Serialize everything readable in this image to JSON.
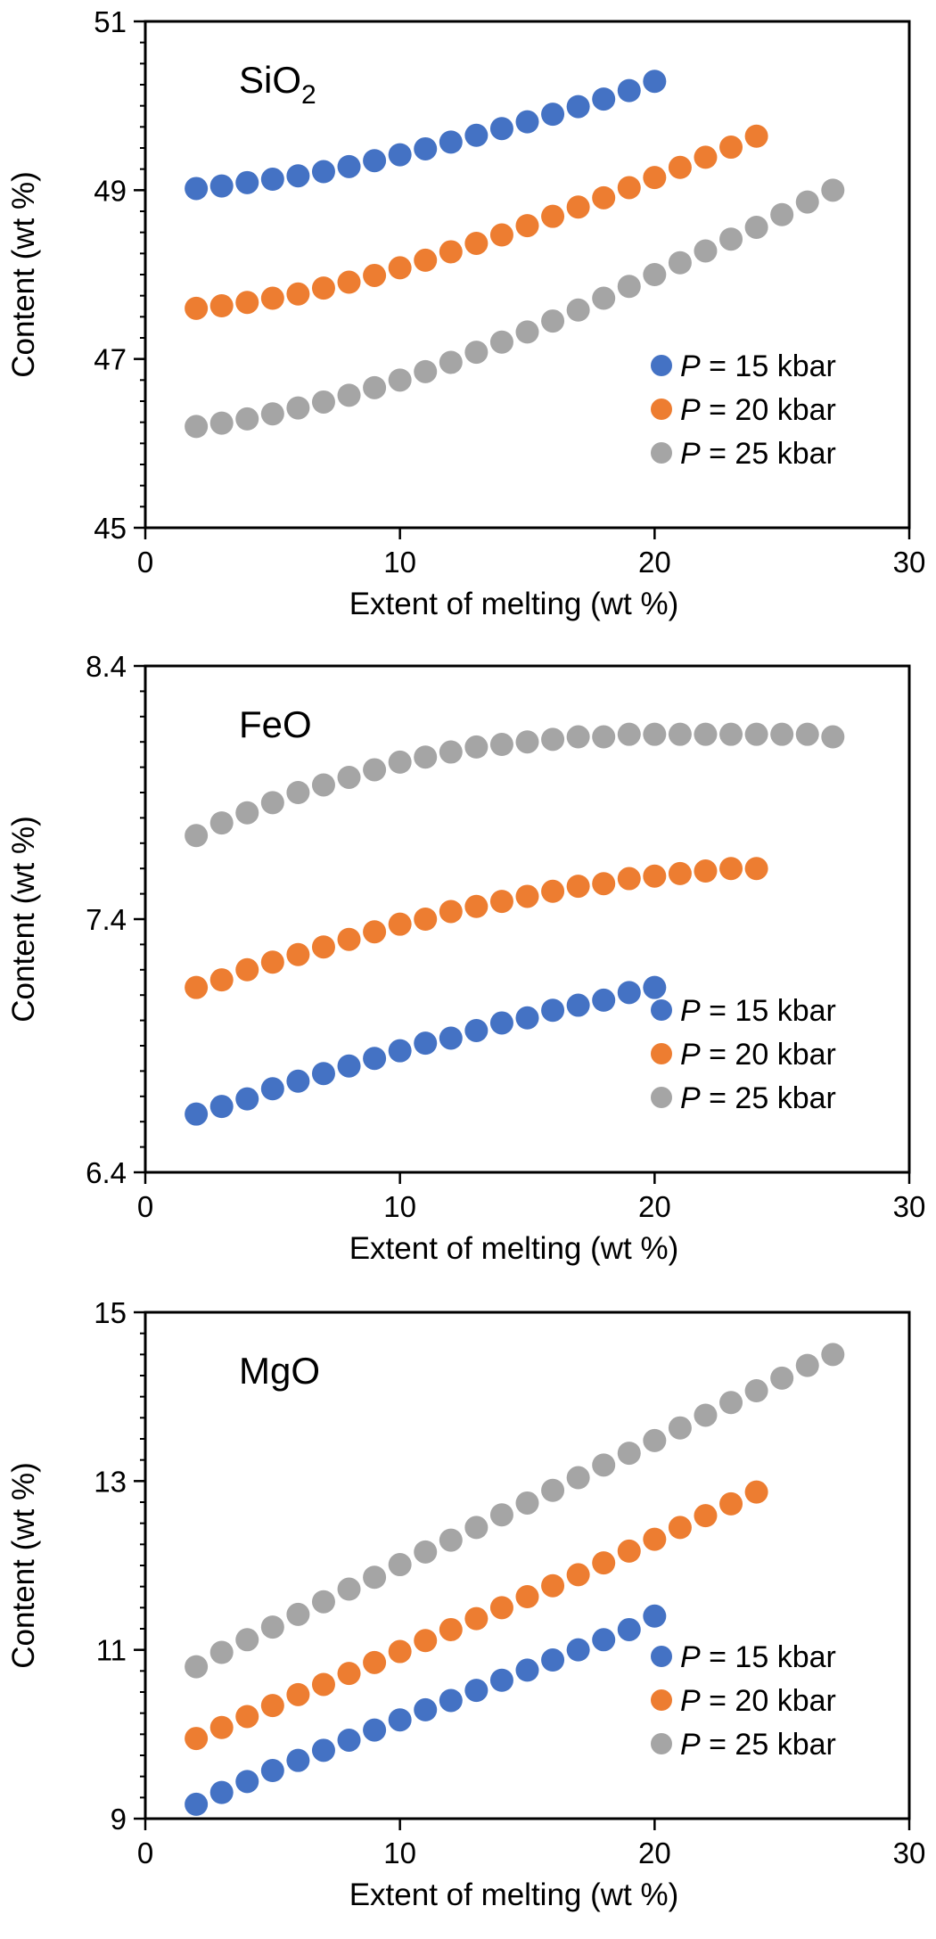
{
  "colors": {
    "p15": "#4472C4",
    "p20": "#ED7D31",
    "p25": "#A5A5A5",
    "axis": "#000000"
  },
  "chart_data": [
    {
      "type": "scatter",
      "title": "SiO",
      "title_sub": "2",
      "xlabel": "Extent of melting (wt %)",
      "ylabel": "Content (wt %)",
      "xlim": [
        0,
        30
      ],
      "ylim": [
        45,
        51
      ],
      "xticks": [
        "0",
        "10",
        "20",
        "30"
      ],
      "xtick_values": [
        0,
        10,
        20,
        30
      ],
      "yticks": [
        "45",
        "47",
        "49",
        "51"
      ],
      "ytick_values": [
        45,
        47,
        49,
        51
      ],
      "y_minor_step": 0.25,
      "legend_position": "bottom-right",
      "x": [
        2,
        3,
        4,
        5,
        6,
        7,
        8,
        9,
        10,
        11,
        12,
        13,
        14,
        15,
        16,
        17,
        18,
        19,
        20,
        21,
        22,
        23,
        24,
        25,
        26,
        27
      ],
      "series": [
        {
          "name": "P = 15 kbar",
          "legend_italic": "P",
          "legend_rest": " = 15 kbar",
          "color_key": "p15",
          "values": [
            49.02,
            49.05,
            49.09,
            49.13,
            49.17,
            49.22,
            49.28,
            49.35,
            49.42,
            49.49,
            49.57,
            49.65,
            49.73,
            49.81,
            49.9,
            49.99,
            50.08,
            50.18,
            50.29
          ]
        },
        {
          "name": "P = 20 kbar",
          "legend_italic": "P",
          "legend_rest": " = 20 kbar",
          "color_key": "p20",
          "values": [
            47.6,
            47.63,
            47.67,
            47.72,
            47.77,
            47.84,
            47.91,
            47.99,
            48.08,
            48.17,
            48.27,
            48.37,
            48.47,
            48.58,
            48.69,
            48.8,
            48.91,
            49.03,
            49.15,
            49.27,
            49.39,
            49.51,
            49.64
          ]
        },
        {
          "name": "P = 25 kbar",
          "legend_italic": "P",
          "legend_rest": " = 25 kbar",
          "color_key": "p25",
          "values": [
            46.2,
            46.24,
            46.29,
            46.35,
            46.42,
            46.49,
            46.57,
            46.66,
            46.75,
            46.85,
            46.96,
            47.08,
            47.2,
            47.32,
            47.45,
            47.58,
            47.72,
            47.86,
            48.0,
            48.14,
            48.28,
            48.42,
            48.56,
            48.71,
            48.86,
            49.0
          ]
        }
      ]
    },
    {
      "type": "scatter",
      "title": "FeO",
      "title_sub": "",
      "xlabel": "Extent of melting (wt %)",
      "ylabel": "Content (wt %)",
      "xlim": [
        0,
        30
      ],
      "ylim": [
        6.4,
        8.4
      ],
      "xticks": [
        "0",
        "10",
        "20",
        "30"
      ],
      "xtick_values": [
        0,
        10,
        20,
        30
      ],
      "yticks": [
        "6.4",
        "7.4",
        "8.4"
      ],
      "ytick_values": [
        6.4,
        7.4,
        8.4
      ],
      "y_minor_step": 0.1,
      "legend_position": "bottom-right",
      "x": [
        2,
        3,
        4,
        5,
        6,
        7,
        8,
        9,
        10,
        11,
        12,
        13,
        14,
        15,
        16,
        17,
        18,
        19,
        20,
        21,
        22,
        23,
        24,
        25,
        26,
        27
      ],
      "series": [
        {
          "name": "P = 15 kbar",
          "legend_italic": "P",
          "legend_rest": " = 15 kbar",
          "color_key": "p15",
          "values": [
            6.63,
            6.66,
            6.69,
            6.73,
            6.76,
            6.79,
            6.82,
            6.85,
            6.88,
            6.91,
            6.93,
            6.96,
            6.99,
            7.01,
            7.04,
            7.06,
            7.08,
            7.11,
            7.13
          ]
        },
        {
          "name": "P = 20 kbar",
          "legend_italic": "P",
          "legend_rest": " = 20 kbar",
          "color_key": "p20",
          "values": [
            7.13,
            7.16,
            7.2,
            7.23,
            7.26,
            7.29,
            7.32,
            7.35,
            7.38,
            7.4,
            7.43,
            7.45,
            7.47,
            7.49,
            7.51,
            7.53,
            7.54,
            7.56,
            7.57,
            7.58,
            7.59,
            7.6,
            7.6
          ]
        },
        {
          "name": "P = 25 kbar",
          "legend_italic": "P",
          "legend_rest": " = 25 kbar",
          "color_key": "p25",
          "values": [
            7.73,
            7.78,
            7.82,
            7.86,
            7.9,
            7.93,
            7.96,
            7.99,
            8.02,
            8.04,
            8.06,
            8.08,
            8.09,
            8.1,
            8.11,
            8.12,
            8.12,
            8.13,
            8.13,
            8.13,
            8.13,
            8.13,
            8.13,
            8.13,
            8.13,
            8.12
          ]
        }
      ]
    },
    {
      "type": "scatter",
      "title": "MgO",
      "title_sub": "",
      "xlabel": "Extent of melting (wt %)",
      "ylabel": "Content (wt %)",
      "xlim": [
        0,
        30
      ],
      "ylim": [
        9,
        15
      ],
      "xticks": [
        "0",
        "10",
        "20",
        "30"
      ],
      "xtick_values": [
        0,
        10,
        20,
        30
      ],
      "yticks": [
        "9",
        "11",
        "13",
        "15"
      ],
      "ytick_values": [
        9,
        11,
        13,
        15
      ],
      "y_minor_step": 0.25,
      "legend_position": "bottom-right",
      "x": [
        2,
        3,
        4,
        5,
        6,
        7,
        8,
        9,
        10,
        11,
        12,
        13,
        14,
        15,
        16,
        17,
        18,
        19,
        20,
        21,
        22,
        23,
        24,
        25,
        26,
        27
      ],
      "series": [
        {
          "name": "P = 15 kbar",
          "legend_italic": "P",
          "legend_rest": " = 15 kbar",
          "color_key": "p15",
          "values": [
            9.17,
            9.31,
            9.44,
            9.57,
            9.69,
            9.81,
            9.93,
            10.05,
            10.17,
            10.29,
            10.4,
            10.52,
            10.64,
            10.76,
            10.88,
            11.0,
            11.12,
            11.24,
            11.4
          ]
        },
        {
          "name": "P = 20 kbar",
          "legend_italic": "P",
          "legend_rest": " = 20 kbar",
          "color_key": "p20",
          "values": [
            9.95,
            10.08,
            10.21,
            10.34,
            10.47,
            10.59,
            10.72,
            10.85,
            10.98,
            11.11,
            11.24,
            11.37,
            11.5,
            11.63,
            11.76,
            11.89,
            12.03,
            12.17,
            12.31,
            12.45,
            12.59,
            12.73,
            12.87
          ]
        },
        {
          "name": "P = 25 kbar",
          "legend_italic": "P",
          "legend_rest": " = 25 kbar",
          "color_key": "p25",
          "values": [
            10.8,
            10.97,
            11.12,
            11.27,
            11.42,
            11.57,
            11.72,
            11.86,
            12.01,
            12.16,
            12.3,
            12.45,
            12.6,
            12.74,
            12.89,
            13.04,
            13.19,
            13.33,
            13.48,
            13.63,
            13.78,
            13.93,
            14.07,
            14.22,
            14.37,
            14.5
          ]
        }
      ]
    }
  ]
}
